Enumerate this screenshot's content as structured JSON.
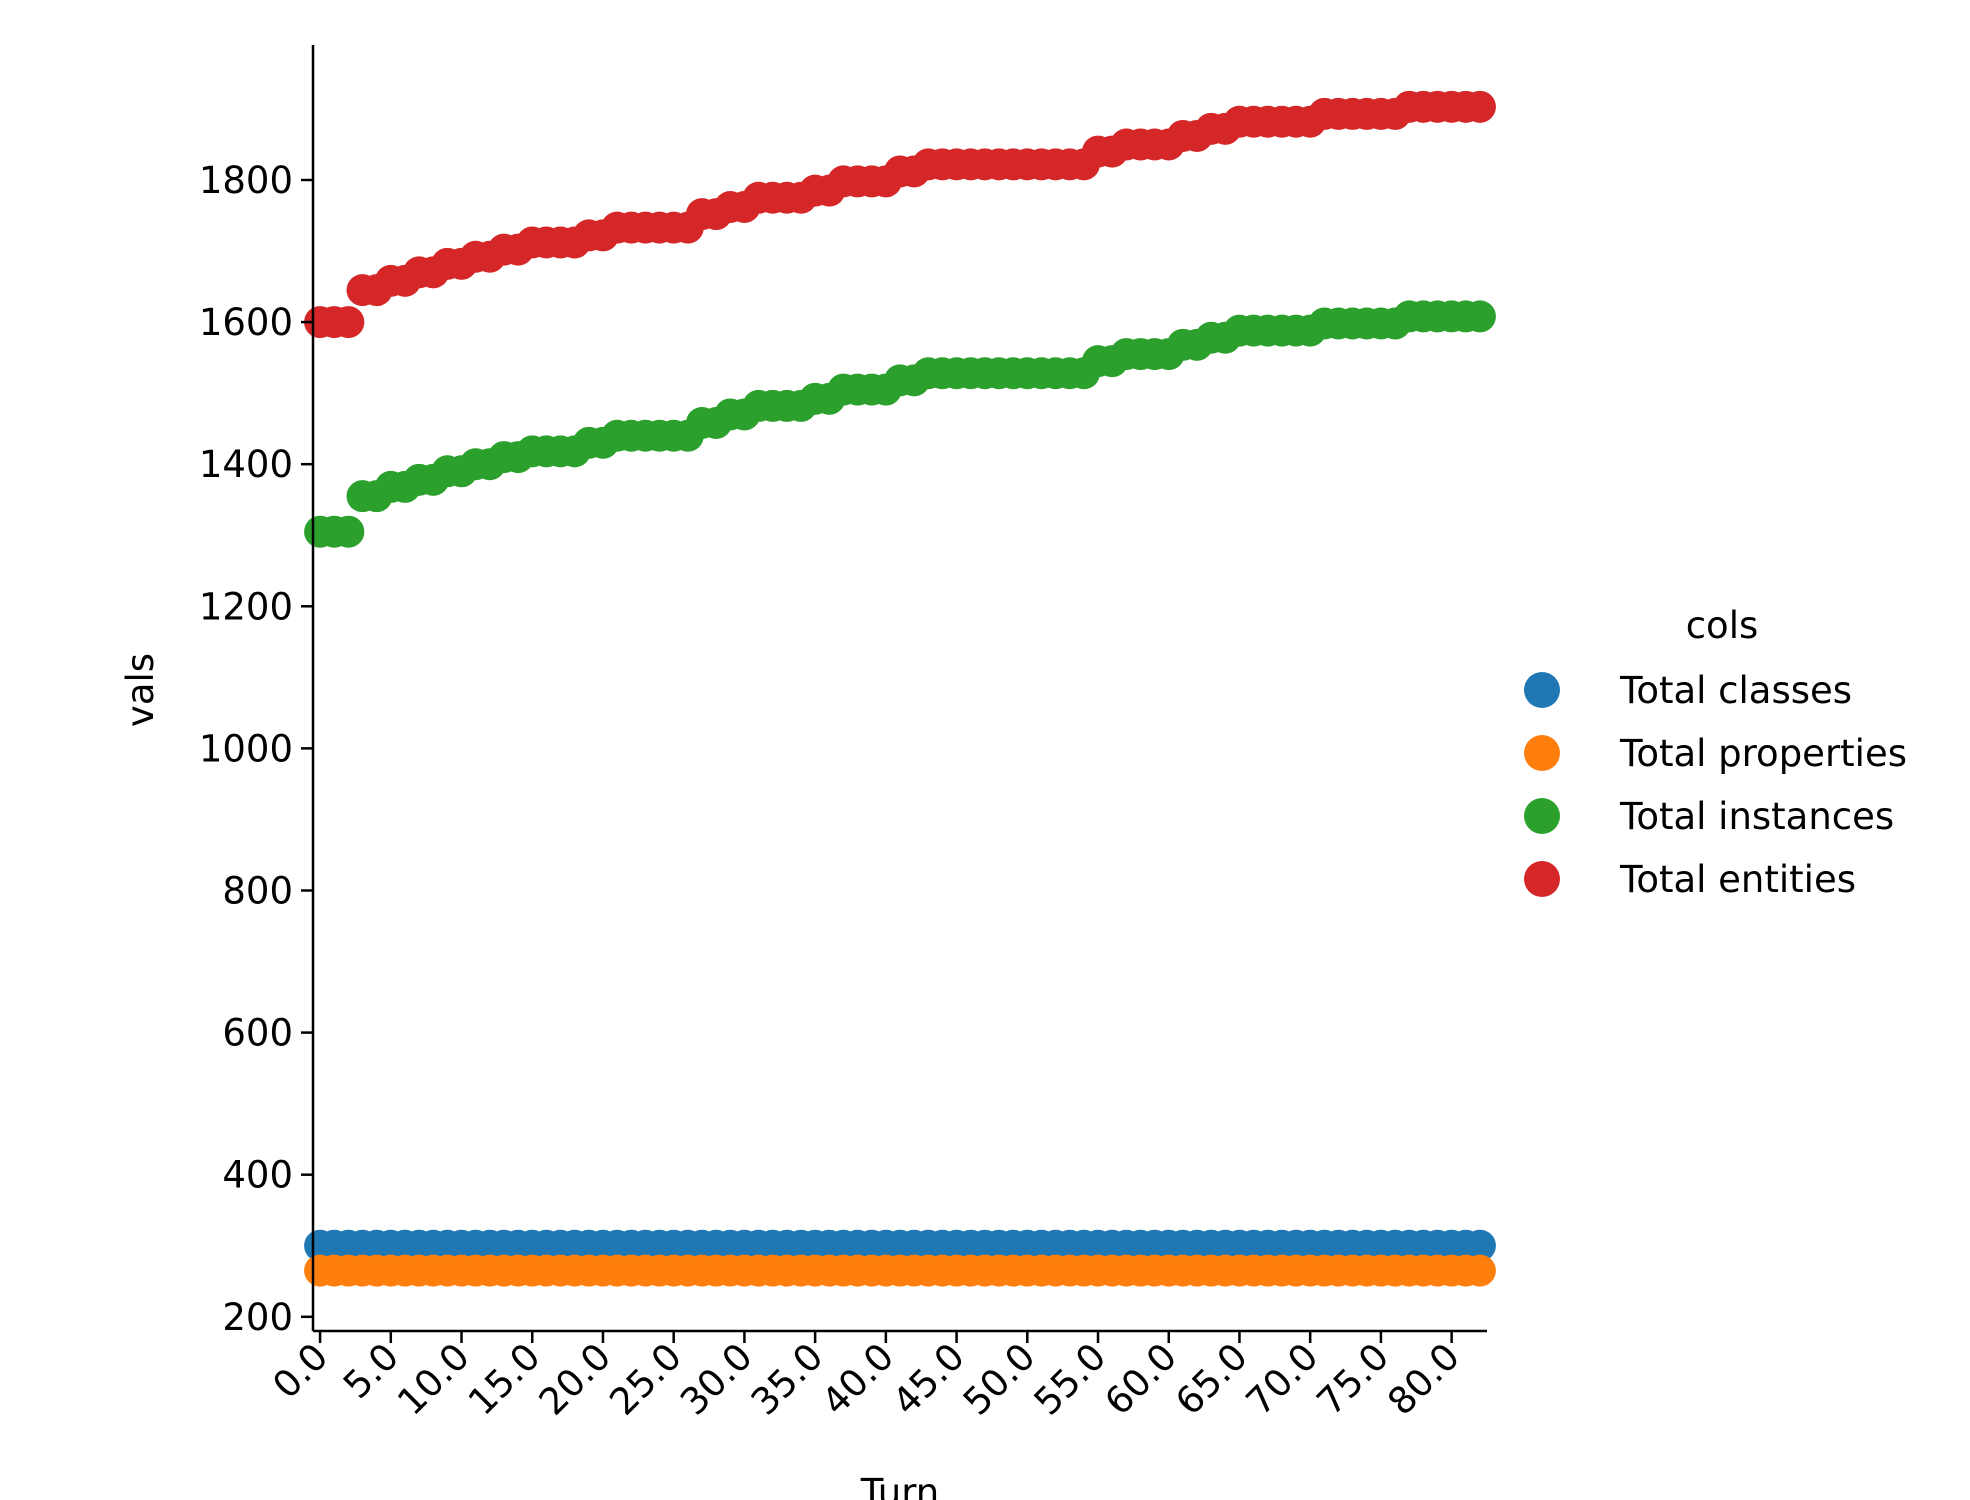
{
  "chart_data": {
    "type": "scatter",
    "xlabel": "Turn",
    "ylabel": "vals",
    "xlim": [
      -0.5,
      82.5
    ],
    "ylim": [
      180,
      1990
    ],
    "x_ticks": [
      0,
      5,
      10,
      15,
      20,
      25,
      30,
      35,
      40,
      45,
      50,
      55,
      60,
      65,
      70,
      75,
      80
    ],
    "x_tick_labels": [
      "0.0",
      "5.0",
      "10.0",
      "15.0",
      "20.0",
      "25.0",
      "30.0",
      "35.0",
      "40.0",
      "45.0",
      "50.0",
      "55.0",
      "60.0",
      "65.0",
      "70.0",
      "75.0",
      "80.0"
    ],
    "y_ticks": [
      200,
      400,
      600,
      800,
      1000,
      1200,
      1400,
      1600,
      1800
    ],
    "y_tick_labels": [
      "200",
      "400",
      "600",
      "800",
      "1000",
      "1200",
      "1400",
      "1600",
      "1800"
    ],
    "grid": false,
    "legend": {
      "title": "cols",
      "placement": "right"
    },
    "x": [
      0,
      1,
      2,
      3,
      4,
      5,
      6,
      7,
      8,
      9,
      10,
      11,
      12,
      13,
      14,
      15,
      16,
      17,
      18,
      19,
      20,
      21,
      22,
      23,
      24,
      25,
      26,
      27,
      28,
      29,
      30,
      31,
      32,
      33,
      34,
      35,
      36,
      37,
      38,
      39,
      40,
      41,
      42,
      43,
      44,
      45,
      46,
      47,
      48,
      49,
      50,
      51,
      52,
      53,
      54,
      55,
      56,
      57,
      58,
      59,
      60,
      61,
      62,
      63,
      64,
      65,
      66,
      67,
      68,
      69,
      70,
      71,
      72,
      73,
      74,
      75,
      76,
      77,
      78,
      79,
      80,
      81,
      82
    ],
    "series": [
      {
        "name": "Total classes",
        "color": "#1f77b4",
        "values": [
          300,
          300,
          300,
          300,
          300,
          300,
          300,
          300,
          300,
          300,
          300,
          300,
          300,
          300,
          300,
          300,
          300,
          300,
          300,
          300,
          300,
          300,
          300,
          300,
          300,
          300,
          300,
          300,
          300,
          300,
          300,
          300,
          300,
          300,
          300,
          300,
          300,
          300,
          300,
          300,
          300,
          300,
          300,
          300,
          300,
          300,
          300,
          300,
          300,
          300,
          300,
          300,
          300,
          300,
          300,
          300,
          300,
          300,
          300,
          300,
          300,
          300,
          300,
          300,
          300,
          300,
          300,
          300,
          300,
          300,
          300,
          300,
          300,
          300,
          300,
          300,
          300,
          300,
          300,
          300,
          300,
          300,
          300
        ]
      },
      {
        "name": "Total properties",
        "color": "#ff7f0e",
        "values": [
          265,
          265,
          265,
          265,
          265,
          265,
          265,
          265,
          265,
          265,
          265,
          265,
          265,
          265,
          265,
          265,
          265,
          265,
          265,
          265,
          265,
          265,
          265,
          265,
          265,
          265,
          265,
          265,
          265,
          265,
          265,
          265,
          265,
          265,
          265,
          265,
          265,
          265,
          265,
          265,
          265,
          265,
          265,
          265,
          265,
          265,
          265,
          265,
          265,
          265,
          265,
          265,
          265,
          265,
          265,
          265,
          265,
          265,
          265,
          265,
          265,
          265,
          265,
          265,
          265,
          265,
          265,
          265,
          265,
          265,
          265,
          265,
          265,
          265,
          265,
          265,
          265,
          265,
          265,
          265,
          265,
          265,
          265
        ]
      },
      {
        "name": "Total instances",
        "color": "#2ca02c",
        "values": [
          1305,
          1305,
          1305,
          1355,
          1355,
          1368,
          1368,
          1378,
          1378,
          1390,
          1390,
          1400,
          1400,
          1410,
          1410,
          1418,
          1418,
          1418,
          1418,
          1430,
          1430,
          1440,
          1440,
          1440,
          1440,
          1440,
          1440,
          1458,
          1458,
          1470,
          1470,
          1482,
          1482,
          1482,
          1482,
          1492,
          1492,
          1505,
          1505,
          1505,
          1505,
          1518,
          1518,
          1528,
          1528,
          1528,
          1528,
          1528,
          1528,
          1528,
          1528,
          1528,
          1528,
          1528,
          1528,
          1545,
          1545,
          1555,
          1555,
          1555,
          1555,
          1568,
          1568,
          1578,
          1578,
          1588,
          1588,
          1588,
          1588,
          1588,
          1588,
          1598,
          1598,
          1598,
          1598,
          1598,
          1598,
          1608,
          1608,
          1608,
          1608,
          1608,
          1608
        ]
      },
      {
        "name": "Total entities",
        "color": "#d62728",
        "values": [
          1600,
          1600,
          1600,
          1645,
          1645,
          1658,
          1658,
          1670,
          1670,
          1682,
          1682,
          1692,
          1692,
          1702,
          1702,
          1712,
          1712,
          1712,
          1712,
          1722,
          1722,
          1733,
          1733,
          1733,
          1733,
          1733,
          1733,
          1752,
          1752,
          1762,
          1762,
          1775,
          1775,
          1775,
          1775,
          1785,
          1785,
          1798,
          1798,
          1798,
          1798,
          1812,
          1812,
          1822,
          1822,
          1822,
          1822,
          1822,
          1822,
          1822,
          1822,
          1822,
          1822,
          1822,
          1822,
          1840,
          1840,
          1850,
          1850,
          1850,
          1850,
          1862,
          1862,
          1872,
          1872,
          1882,
          1882,
          1882,
          1882,
          1882,
          1882,
          1893,
          1893,
          1893,
          1893,
          1893,
          1893,
          1903,
          1903,
          1903,
          1903,
          1903,
          1903
        ]
      }
    ]
  }
}
